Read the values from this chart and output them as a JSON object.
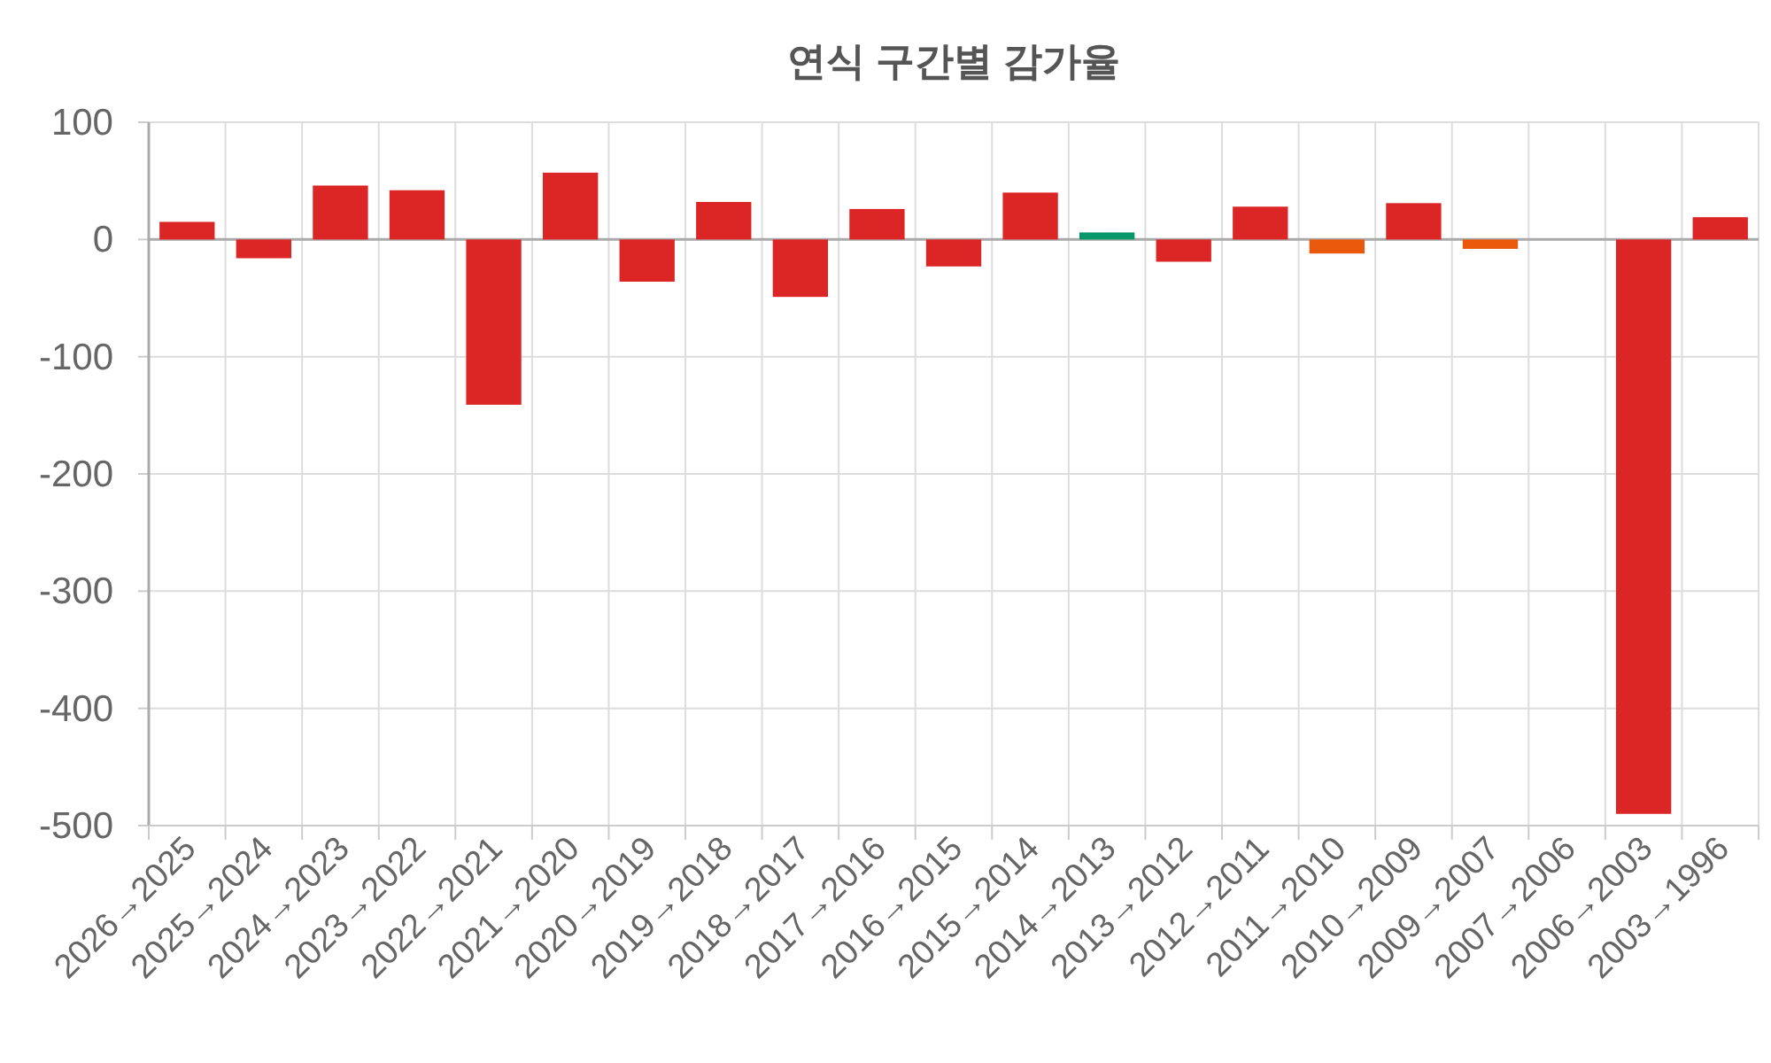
{
  "chart_data": {
    "type": "bar",
    "title": "연식 구간별 감가율",
    "categories": [
      "2026→2025",
      "2025→2024",
      "2024→2023",
      "2023→2022",
      "2022→2021",
      "2021→2020",
      "2020→2019",
      "2019→2018",
      "2018→2017",
      "2017→2016",
      "2016→2015",
      "2015→2014",
      "2014→2013",
      "2013→2012",
      "2012→2011",
      "2011→2010",
      "2010→2009",
      "2009→2007",
      "2007→2006",
      "2006→2003",
      "2003→1996"
    ],
    "values": [
      15,
      -16,
      46,
      42,
      -141,
      57,
      -36,
      32,
      -49,
      26,
      -23,
      40,
      6,
      -19,
      28,
      -12,
      31,
      -8,
      0,
      -490,
      19
    ],
    "colors": [
      "#dc2626",
      "#dc2626",
      "#dc2626",
      "#dc2626",
      "#dc2626",
      "#dc2626",
      "#dc2626",
      "#dc2626",
      "#dc2626",
      "#dc2626",
      "#dc2626",
      "#dc2626",
      "#059669",
      "#dc2626",
      "#dc2626",
      "#ea580c",
      "#dc2626",
      "#ea580c",
      "#dc2626",
      "#dc2626",
      "#dc2626"
    ],
    "ylim": [
      -500,
      100
    ],
    "yticks": [
      -500,
      -400,
      -300,
      -200,
      -100,
      0,
      100
    ],
    "grid": true
  }
}
